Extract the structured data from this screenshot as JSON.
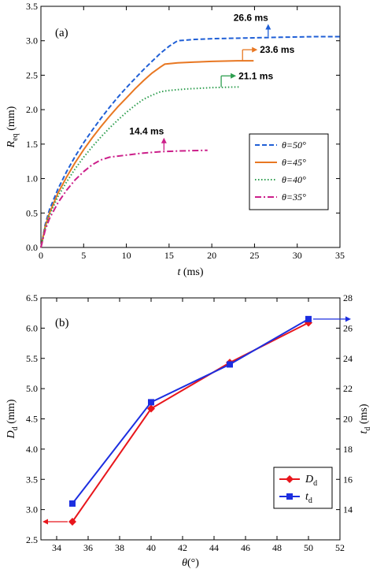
{
  "chart_data": [
    {
      "type": "line",
      "panel_label": "(a)",
      "xlabel": "t",
      "xlabel_unit": " (ms)",
      "ylabel": "R",
      "ylabel_sub": "eq",
      "ylabel_unit": " (mm)",
      "xlim": [
        0,
        35
      ],
      "ylim": [
        0,
        3.5
      ],
      "xticks": [
        "0",
        "5",
        "10",
        "15",
        "20",
        "25",
        "30",
        "35"
      ],
      "yticks": [
        "0.0",
        "0.5",
        "1.0",
        "1.5",
        "2.0",
        "2.5",
        "3.0",
        "3.5"
      ],
      "legend_position": "right-middle",
      "series": [
        {
          "name": "θ=50°",
          "color": "#1f5fd6",
          "dash": "dashed",
          "points": [
            [
              0,
              0
            ],
            [
              0.5,
              0.33
            ],
            [
              1,
              0.55
            ],
            [
              2,
              0.85
            ],
            [
              3,
              1.1
            ],
            [
              4,
              1.32
            ],
            [
              5,
              1.52
            ],
            [
              6,
              1.7
            ],
            [
              7,
              1.87
            ],
            [
              8,
              2.03
            ],
            [
              9,
              2.18
            ],
            [
              10,
              2.32
            ],
            [
              11,
              2.45
            ],
            [
              12,
              2.58
            ],
            [
              13,
              2.7
            ],
            [
              14,
              2.82
            ],
            [
              15,
              2.92
            ],
            [
              16,
              3.0
            ],
            [
              18,
              3.02
            ],
            [
              20,
              3.03
            ],
            [
              24,
              3.04
            ],
            [
              28,
              3.05
            ],
            [
              32,
              3.06
            ],
            [
              35,
              3.06
            ]
          ],
          "annotation": {
            "text": "26.6 ms",
            "x": 26.6,
            "y": 3.06,
            "arrow": "up"
          }
        },
        {
          "name": "θ=45°",
          "color": "#e87722",
          "dash": "solid",
          "points": [
            [
              0,
              0
            ],
            [
              0.5,
              0.3
            ],
            [
              1,
              0.5
            ],
            [
              2,
              0.79
            ],
            [
              3,
              1.02
            ],
            [
              4,
              1.23
            ],
            [
              5,
              1.42
            ],
            [
              6,
              1.59
            ],
            [
              7,
              1.75
            ],
            [
              8,
              1.9
            ],
            [
              9,
              2.04
            ],
            [
              10,
              2.17
            ],
            [
              11,
              2.3
            ],
            [
              12,
              2.42
            ],
            [
              13,
              2.53
            ],
            [
              14,
              2.62
            ],
            [
              14.5,
              2.66
            ],
            [
              16,
              2.68
            ],
            [
              18,
              2.69
            ],
            [
              20,
              2.7
            ],
            [
              23,
              2.71
            ],
            [
              24.9,
              2.71
            ]
          ],
          "annotation": {
            "text": "23.6 ms",
            "x": 23.6,
            "y": 2.71,
            "arrow": "right"
          }
        },
        {
          "name": "θ=40°",
          "color": "#2e9e4f",
          "dash": "dotted",
          "points": [
            [
              0,
              0
            ],
            [
              0.5,
              0.28
            ],
            [
              1,
              0.47
            ],
            [
              2,
              0.74
            ],
            [
              3,
              0.95
            ],
            [
              4,
              1.14
            ],
            [
              5,
              1.31
            ],
            [
              6,
              1.46
            ],
            [
              7,
              1.6
            ],
            [
              8,
              1.73
            ],
            [
              9,
              1.85
            ],
            [
              10,
              1.96
            ],
            [
              11,
              2.06
            ],
            [
              12,
              2.15
            ],
            [
              13,
              2.21
            ],
            [
              14,
              2.26
            ],
            [
              15,
              2.28
            ],
            [
              17,
              2.3
            ],
            [
              20,
              2.32
            ],
            [
              23.2,
              2.33
            ]
          ],
          "annotation": {
            "text": "21.1 ms",
            "x": 21.1,
            "y": 2.33,
            "arrow": "right"
          }
        },
        {
          "name": "θ=35°",
          "color": "#cc1f8a",
          "dash": "dashdot",
          "points": [
            [
              0,
              0
            ],
            [
              0.5,
              0.25
            ],
            [
              1,
              0.42
            ],
            [
              2,
              0.65
            ],
            [
              3,
              0.83
            ],
            [
              4,
              0.98
            ],
            [
              5,
              1.1
            ],
            [
              6,
              1.2
            ],
            [
              7,
              1.27
            ],
            [
              8,
              1.31
            ],
            [
              10,
              1.34
            ],
            [
              12,
              1.37
            ],
            [
              14,
              1.39
            ],
            [
              16,
              1.4
            ],
            [
              19.5,
              1.41
            ]
          ],
          "annotation": {
            "text": "14.4 ms",
            "x": 14.4,
            "y": 1.41,
            "arrow": "up"
          }
        }
      ]
    },
    {
      "type": "line",
      "panel_label": "(b)",
      "xlabel": "θ",
      "xlabel_unit": "(°)",
      "ylabel": "D",
      "ylabel_sub": "d",
      "ylabel_unit": " (mm)",
      "y2label": "t",
      "y2label_sub": "d",
      "y2label_unit": " (ms)",
      "xlim": [
        33,
        52
      ],
      "ylim": [
        2.5,
        6.5
      ],
      "y2lim": [
        12,
        28
      ],
      "xticks": [
        "34",
        "36",
        "38",
        "40",
        "42",
        "44",
        "46",
        "48",
        "50",
        "52"
      ],
      "yticks": [
        "2.5",
        "3.0",
        "3.5",
        "4.0",
        "4.5",
        "5.0",
        "5.5",
        "6.0",
        "6.5"
      ],
      "y2ticks": [
        "14",
        "16",
        "18",
        "20",
        "22",
        "24",
        "26",
        "28"
      ],
      "legend_position": "bottom-right",
      "x": [
        35,
        40,
        45,
        50
      ],
      "series": [
        {
          "name": "D",
          "name_sub": "d",
          "axis": "left",
          "color": "#e8161c",
          "marker": "diamond",
          "values": [
            2.8,
            4.67,
            5.43,
            6.09
          ],
          "arrow": "left"
        },
        {
          "name": "t",
          "name_sub": "d",
          "axis": "right",
          "color": "#1c2ee0",
          "marker": "square",
          "values": [
            14.4,
            21.1,
            23.6,
            26.6
          ],
          "arrow": "right"
        }
      ]
    }
  ]
}
